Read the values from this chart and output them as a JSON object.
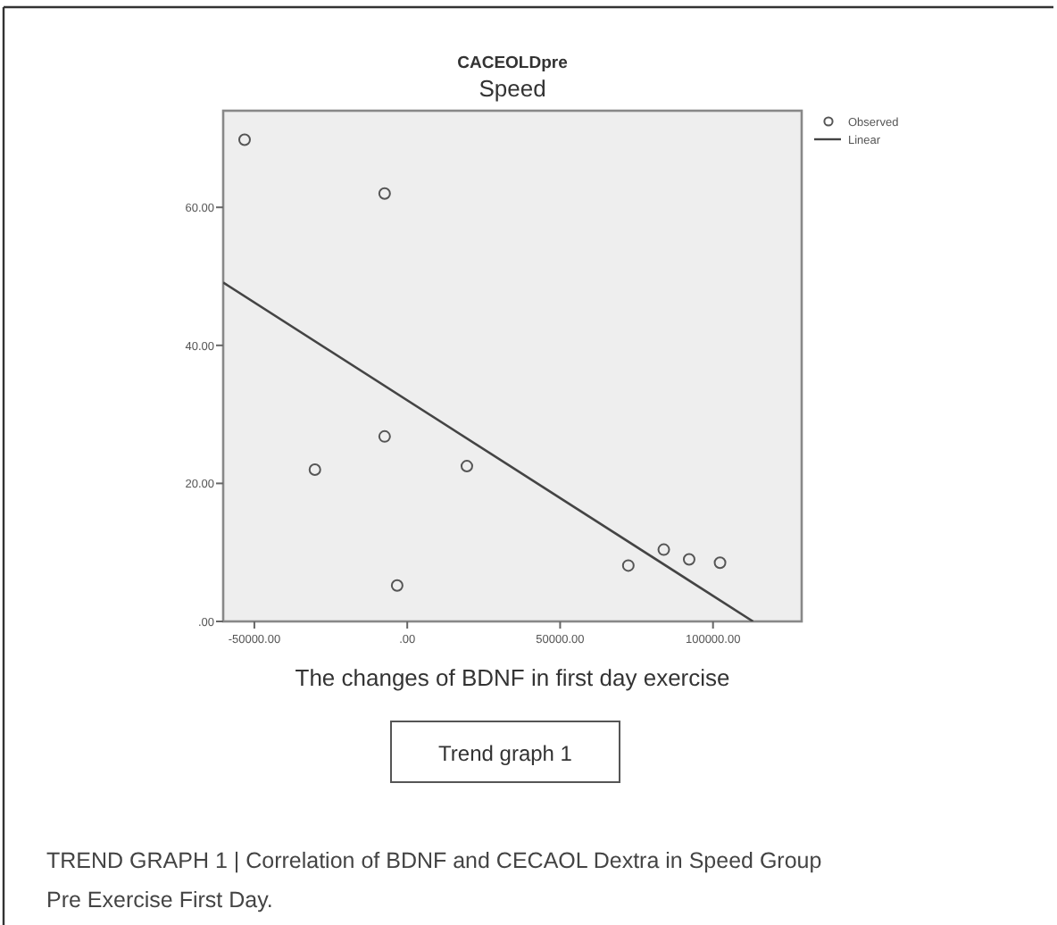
{
  "chart_data": {
    "type": "scatter",
    "title": "CACEOLDpre",
    "subtitle": "Speed",
    "xlabel": "The changes of BDNF in first day exercise",
    "xlim": [
      -60200,
      129000
    ],
    "ylim": [
      0,
      74
    ],
    "xticks": [
      {
        "value": -50000,
        "label": "-50000.00"
      },
      {
        "value": 0,
        "label": ".00"
      },
      {
        "value": 50000,
        "label": "50000.00"
      },
      {
        "value": 100000,
        "label": "100000.00"
      }
    ],
    "yticks": [
      {
        "value": 0,
        "label": ".00"
      },
      {
        "value": 20,
        "label": "20.00"
      },
      {
        "value": 40,
        "label": "40.00"
      },
      {
        "value": 60,
        "label": "60.00"
      }
    ],
    "grid": false,
    "legend": "top right",
    "series": [
      {
        "name": "Observed",
        "marker": "circle",
        "color": "#555555",
        "x": [
          -53200,
          -7400,
          -30200,
          -7400,
          19500,
          -3300,
          72300,
          83900,
          92200,
          102300
        ],
        "values": [
          69.8,
          62.0,
          22.0,
          26.8,
          22.5,
          5.2,
          8.1,
          10.4,
          9.0,
          8.5
        ]
      },
      {
        "name": "Linear",
        "type": "line",
        "color": "#444444",
        "x": [
          -60200,
          113100
        ],
        "values": [
          49.1,
          0
        ]
      }
    ],
    "annotations": [
      "Trend graph 1",
      "TREND GRAPH 1 | Correlation of BDNF and CECAOL Dextra in Speed Group Pre Exercise First Day."
    ]
  }
}
